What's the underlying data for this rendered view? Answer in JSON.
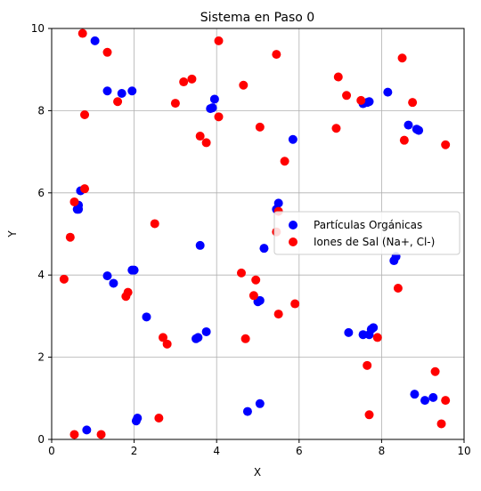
{
  "chart_data": {
    "type": "scatter",
    "title": "Sistema en Paso 0",
    "xlabel": "X",
    "ylabel": "Y",
    "xlim": [
      0,
      10
    ],
    "ylim": [
      0,
      10
    ],
    "xticks": [
      0,
      2,
      4,
      6,
      8,
      10
    ],
    "yticks": [
      0,
      2,
      4,
      6,
      8,
      10
    ],
    "grid": true,
    "legend_position": "center-right",
    "series": [
      {
        "name": "Partículas Orgánicas",
        "color": "#0000ff",
        "points": [
          [
            1.05,
            9.7
          ],
          [
            1.35,
            8.48
          ],
          [
            1.7,
            8.42
          ],
          [
            1.95,
            8.48
          ],
          [
            3.85,
            8.05
          ],
          [
            3.9,
            8.07
          ],
          [
            3.95,
            8.28
          ],
          [
            5.85,
            7.3
          ],
          [
            7.55,
            8.17
          ],
          [
            7.65,
            8.2
          ],
          [
            7.7,
            8.22
          ],
          [
            8.15,
            8.45
          ],
          [
            8.65,
            7.65
          ],
          [
            8.85,
            7.55
          ],
          [
            8.9,
            7.52
          ],
          [
            0.7,
            6.05
          ],
          [
            0.65,
            5.7
          ],
          [
            0.65,
            5.6
          ],
          [
            0.62,
            5.6
          ],
          [
            5.45,
            5.6
          ],
          [
            5.5,
            5.75
          ],
          [
            3.6,
            4.72
          ],
          [
            5.15,
            4.65
          ],
          [
            1.35,
            3.98
          ],
          [
            1.5,
            3.8
          ],
          [
            1.95,
            4.12
          ],
          [
            2.0,
            4.12
          ],
          [
            8.3,
            4.35
          ],
          [
            8.35,
            4.45
          ],
          [
            5.0,
            3.35
          ],
          [
            5.05,
            3.38
          ],
          [
            2.3,
            2.98
          ],
          [
            3.5,
            2.45
          ],
          [
            3.55,
            2.48
          ],
          [
            3.75,
            2.62
          ],
          [
            7.2,
            2.6
          ],
          [
            7.55,
            2.55
          ],
          [
            7.7,
            2.55
          ],
          [
            7.75,
            2.68
          ],
          [
            7.8,
            2.72
          ],
          [
            0.85,
            0.23
          ],
          [
            2.05,
            0.45
          ],
          [
            2.08,
            0.52
          ],
          [
            4.75,
            0.68
          ],
          [
            5.05,
            0.87
          ],
          [
            8.8,
            1.1
          ],
          [
            9.05,
            0.95
          ],
          [
            9.25,
            1.02
          ]
        ]
      },
      {
        "name": "Iones de Sal (Na+, Cl-)",
        "color": "#ff0000",
        "points": [
          [
            0.75,
            9.88
          ],
          [
            1.35,
            9.42
          ],
          [
            4.05,
            9.7
          ],
          [
            5.45,
            9.37
          ],
          [
            8.5,
            9.28
          ],
          [
            3.4,
            8.77
          ],
          [
            3.2,
            8.7
          ],
          [
            4.65,
            8.62
          ],
          [
            6.95,
            8.82
          ],
          [
            1.6,
            8.22
          ],
          [
            0.8,
            7.9
          ],
          [
            3.0,
            8.18
          ],
          [
            7.15,
            8.37
          ],
          [
            7.5,
            8.25
          ],
          [
            8.75,
            8.2
          ],
          [
            4.05,
            7.85
          ],
          [
            3.6,
            7.38
          ],
          [
            3.75,
            7.22
          ],
          [
            5.05,
            7.6
          ],
          [
            6.9,
            7.57
          ],
          [
            8.55,
            7.28
          ],
          [
            9.55,
            7.17
          ],
          [
            5.65,
            6.77
          ],
          [
            0.8,
            6.1
          ],
          [
            0.55,
            5.78
          ],
          [
            0.45,
            4.92
          ],
          [
            2.5,
            5.25
          ],
          [
            5.5,
            5.55
          ],
          [
            5.45,
            5.05
          ],
          [
            0.3,
            3.9
          ],
          [
            4.6,
            4.05
          ],
          [
            4.95,
            3.88
          ],
          [
            1.85,
            3.58
          ],
          [
            1.8,
            3.48
          ],
          [
            4.9,
            3.5
          ],
          [
            5.9,
            3.3
          ],
          [
            8.4,
            3.68
          ],
          [
            5.5,
            3.05
          ],
          [
            2.7,
            2.48
          ],
          [
            2.8,
            2.32
          ],
          [
            4.7,
            2.45
          ],
          [
            7.9,
            2.48
          ],
          [
            7.65,
            1.8
          ],
          [
            9.3,
            1.65
          ],
          [
            2.6,
            0.52
          ],
          [
            7.7,
            0.6
          ],
          [
            9.55,
            0.95
          ],
          [
            9.45,
            0.38
          ],
          [
            0.55,
            0.12
          ],
          [
            1.2,
            0.12
          ]
        ]
      }
    ]
  }
}
